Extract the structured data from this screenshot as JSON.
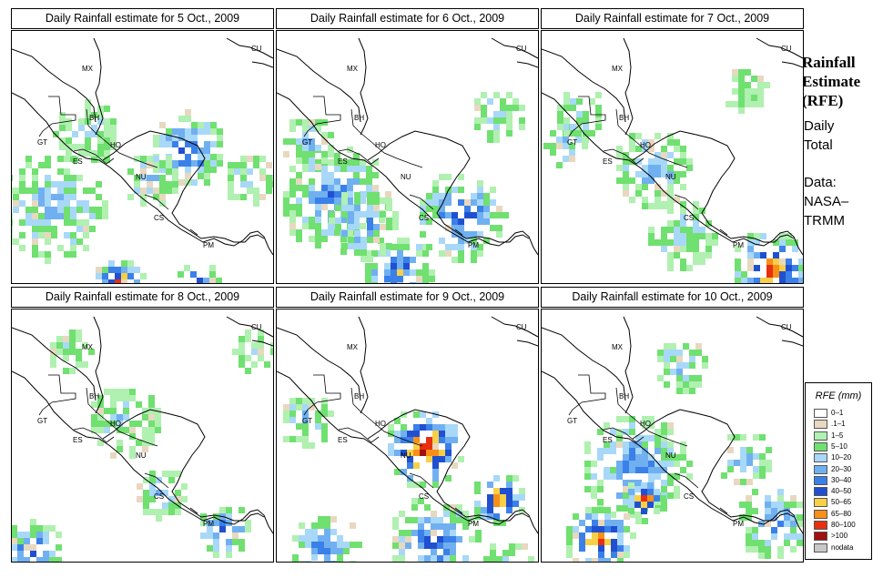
{
  "sidebar": {
    "title_lines": [
      "Rainfall",
      "Estimate",
      "(RFE)"
    ],
    "period_lines": [
      "Daily",
      "Total"
    ],
    "source_lines": [
      "Data:",
      "NASA–",
      "TRMM"
    ]
  },
  "legend": {
    "title": "RFE (mm)",
    "items": [
      {
        "label": "0–1",
        "color": "#ffffff"
      },
      {
        "label": ".1–1",
        "color": "#e8d8c0"
      },
      {
        "label": "1–5",
        "color": "#b0f0b0"
      },
      {
        "label": "5–10",
        "color": "#70e070"
      },
      {
        "label": "10–20",
        "color": "#a8d8f8"
      },
      {
        "label": "20–30",
        "color": "#70b0f0"
      },
      {
        "label": "30–40",
        "color": "#3a80e8"
      },
      {
        "label": "40–50",
        "color": "#2050d0"
      },
      {
        "label": "50–65",
        "color": "#f8d048"
      },
      {
        "label": "65–80",
        "color": "#f89018"
      },
      {
        "label": "80–100",
        "color": "#e83010"
      },
      {
        "label": ">100",
        "color": "#a01010"
      },
      {
        "label": "nodata",
        "color": "#c8c8c8"
      }
    ]
  },
  "map_labels": [
    "MX",
    "CU",
    "BH",
    "GT",
    "HO",
    "ES",
    "NU",
    "CS",
    "PM"
  ],
  "panels": [
    {
      "title": "Daily Rainfall estimate for  5 Oct., 2009"
    },
    {
      "title": "Daily Rainfall estimate for  6 Oct., 2009"
    },
    {
      "title": "Daily Rainfall estimate for  7 Oct., 2009"
    },
    {
      "title": "Daily Rainfall estimate for  8 Oct., 2009"
    },
    {
      "title": "Daily Rainfall estimate for  9 Oct., 2009"
    },
    {
      "title": "Daily Rainfall estimate for  10 Oct., 2009"
    }
  ]
}
